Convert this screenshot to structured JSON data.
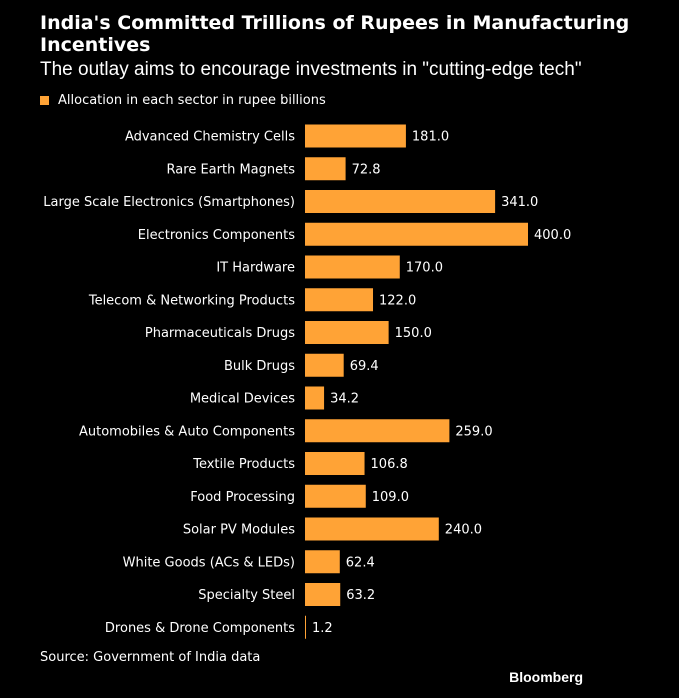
{
  "colors": {
    "background": "#000000",
    "bar": "#ffa336",
    "text": "#ffffff"
  },
  "chart_data": {
    "type": "bar",
    "orientation": "horizontal",
    "title": "India's Committed Trillions of Rupees in Manufacturing Incentives",
    "subtitle": "The outlay aims to encourage investments in \"cutting-edge tech\"",
    "legend_position": "top-left",
    "grid": false,
    "xlim": [
      0,
      400
    ],
    "categories": [
      "Advanced Chemistry Cells",
      "Rare Earth Magnets",
      "Large Scale Electronics (Smartphones)",
      "Electronics Components",
      "IT Hardware",
      "Telecom & Networking Products",
      "Pharmaceuticals Drugs",
      "Bulk Drugs",
      "Medical Devices",
      "Automobiles & Auto Components",
      "Textile Products",
      "Food Processing",
      "Solar PV Modules",
      "White Goods (ACs & LEDs)",
      "Specialty Steel",
      "Drones & Drone Components"
    ],
    "series": [
      {
        "name": "Allocation in each sector in rupee billions",
        "values": [
          181.0,
          72.8,
          341.0,
          400.0,
          170.0,
          122.0,
          150.0,
          69.4,
          34.2,
          259.0,
          106.8,
          109.0,
          240.0,
          62.4,
          63.2,
          1.2
        ],
        "labels": [
          "181.0",
          "72.8",
          "341.0",
          "400.0",
          "170.0",
          "122.0",
          "150.0",
          "69.4",
          "34.2",
          "259.0",
          "106.8",
          "109.0",
          "240.0",
          "62.4",
          "63.2",
          "1.2"
        ]
      }
    ]
  },
  "footer": {
    "source": "Source: Government of India data",
    "brand": "Bloomberg"
  }
}
